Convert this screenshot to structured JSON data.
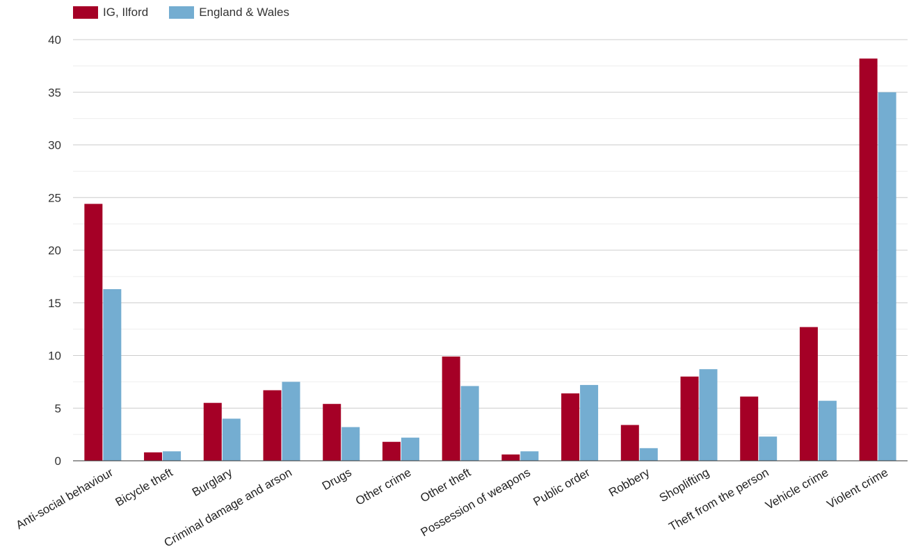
{
  "chart_data": {
    "type": "bar",
    "title": "",
    "xlabel": "",
    "ylabel": "",
    "ylim": [
      0,
      40
    ],
    "yticks": [
      0,
      5,
      10,
      15,
      20,
      25,
      30,
      35,
      40
    ],
    "grid": true,
    "legend_position": "top-left",
    "categories": [
      "Anti-social behaviour",
      "Bicycle theft",
      "Burglary",
      "Criminal damage and arson",
      "Drugs",
      "Other crime",
      "Other theft",
      "Possession of weapons",
      "Public order",
      "Robbery",
      "Shoplifting",
      "Theft from the person",
      "Vehicle crime",
      "Violent crime"
    ],
    "series": [
      {
        "name": "IG, Ilford",
        "color": "#a50026",
        "values": [
          24.4,
          0.8,
          5.5,
          6.7,
          5.4,
          1.8,
          9.9,
          0.6,
          6.4,
          3.4,
          8.0,
          6.1,
          12.7,
          38.2
        ]
      },
      {
        "name": "England & Wales",
        "color": "#74add1",
        "values": [
          16.3,
          0.9,
          4.0,
          7.5,
          3.2,
          2.2,
          7.1,
          0.9,
          7.2,
          1.2,
          8.7,
          2.3,
          5.7,
          35.0
        ]
      }
    ]
  }
}
